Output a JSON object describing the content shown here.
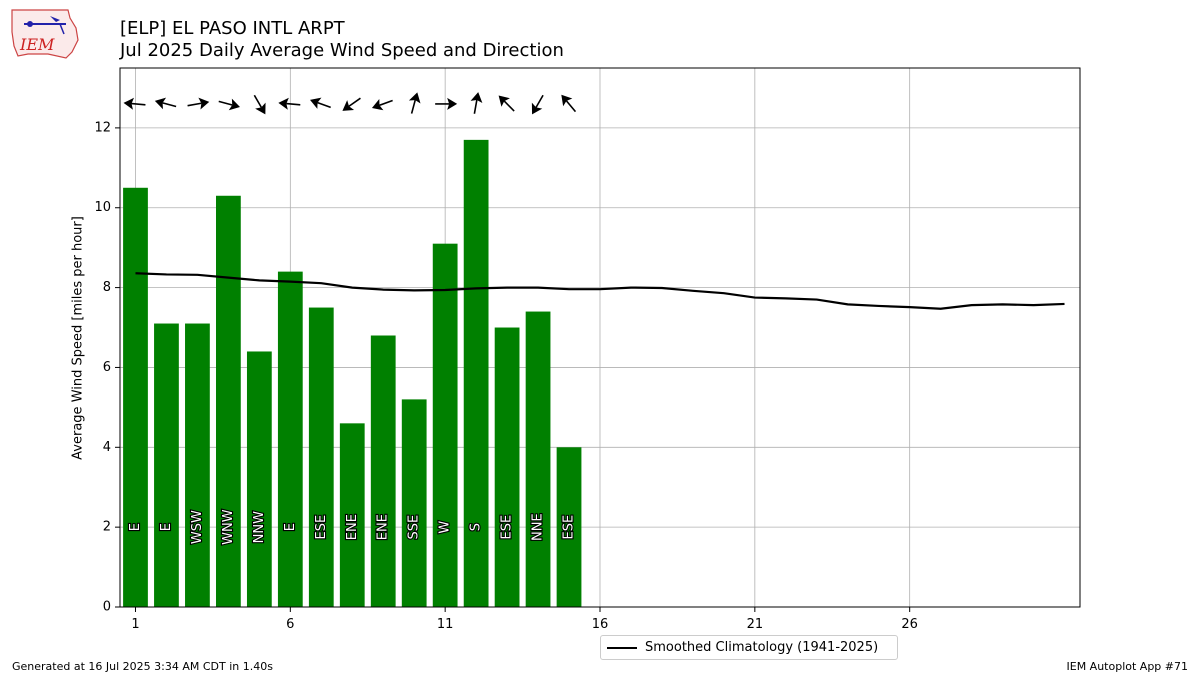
{
  "header": {
    "title_line1": "[ELP] EL PASO INTL ARPT",
    "title_line2": "Jul 2025 Daily Average Wind Speed and Direction",
    "logo_text": "IEM"
  },
  "footer": {
    "generated": "Generated at 16 Jul 2025 3:34 AM CDT in 1.40s",
    "app": "IEM Autoplot App #71"
  },
  "chart_data": {
    "type": "bar",
    "title": "Jul 2025 Daily Average Wind Speed and Direction",
    "xlabel": "",
    "ylabel": "Average Wind Speed [miles per hour]",
    "xlim": [
      0.5,
      31.5
    ],
    "ylim": [
      0,
      13.5
    ],
    "xticks": [
      1,
      6,
      11,
      16,
      21,
      26
    ],
    "yticks": [
      0,
      2,
      4,
      6,
      8,
      10,
      12
    ],
    "grid": true,
    "legend_position": "bottom-center",
    "bar_color": "#008000",
    "line_color": "#000000",
    "days": [
      1,
      2,
      3,
      4,
      5,
      6,
      7,
      8,
      9,
      10,
      11,
      12,
      13,
      14,
      15
    ],
    "values": [
      10.5,
      7.1,
      7.1,
      10.3,
      6.4,
      8.4,
      7.5,
      4.6,
      6.8,
      5.2,
      9.1,
      11.7,
      7.0,
      7.4,
      4.0
    ],
    "direction_labels": [
      "E",
      "E",
      "WSW",
      "WNW",
      "NNW",
      "E",
      "ESE",
      "ENE",
      "ENE",
      "SSE",
      "W",
      "S",
      "ESE",
      "NNE",
      "ESE"
    ],
    "arrow_angles_deg": [
      185,
      195,
      350,
      15,
      60,
      185,
      200,
      145,
      160,
      285,
      0,
      280,
      225,
      120,
      230
    ],
    "climatology": {
      "name": "Smoothed Climatology (1941-2025)",
      "x": [
        1,
        2,
        3,
        4,
        5,
        6,
        7,
        8,
        9,
        10,
        11,
        12,
        13,
        14,
        15,
        16,
        17,
        18,
        19,
        20,
        21,
        22,
        23,
        24,
        25,
        26,
        27,
        28,
        29,
        30,
        31
      ],
      "values": [
        8.36,
        8.33,
        8.32,
        8.25,
        8.18,
        8.15,
        8.11,
        8.0,
        7.95,
        7.93,
        7.94,
        7.98,
        8.0,
        8.0,
        7.96,
        7.96,
        8.0,
        7.99,
        7.92,
        7.86,
        7.75,
        7.73,
        7.7,
        7.58,
        7.54,
        7.51,
        7.47,
        7.56,
        7.58,
        7.56,
        7.59
      ]
    }
  }
}
